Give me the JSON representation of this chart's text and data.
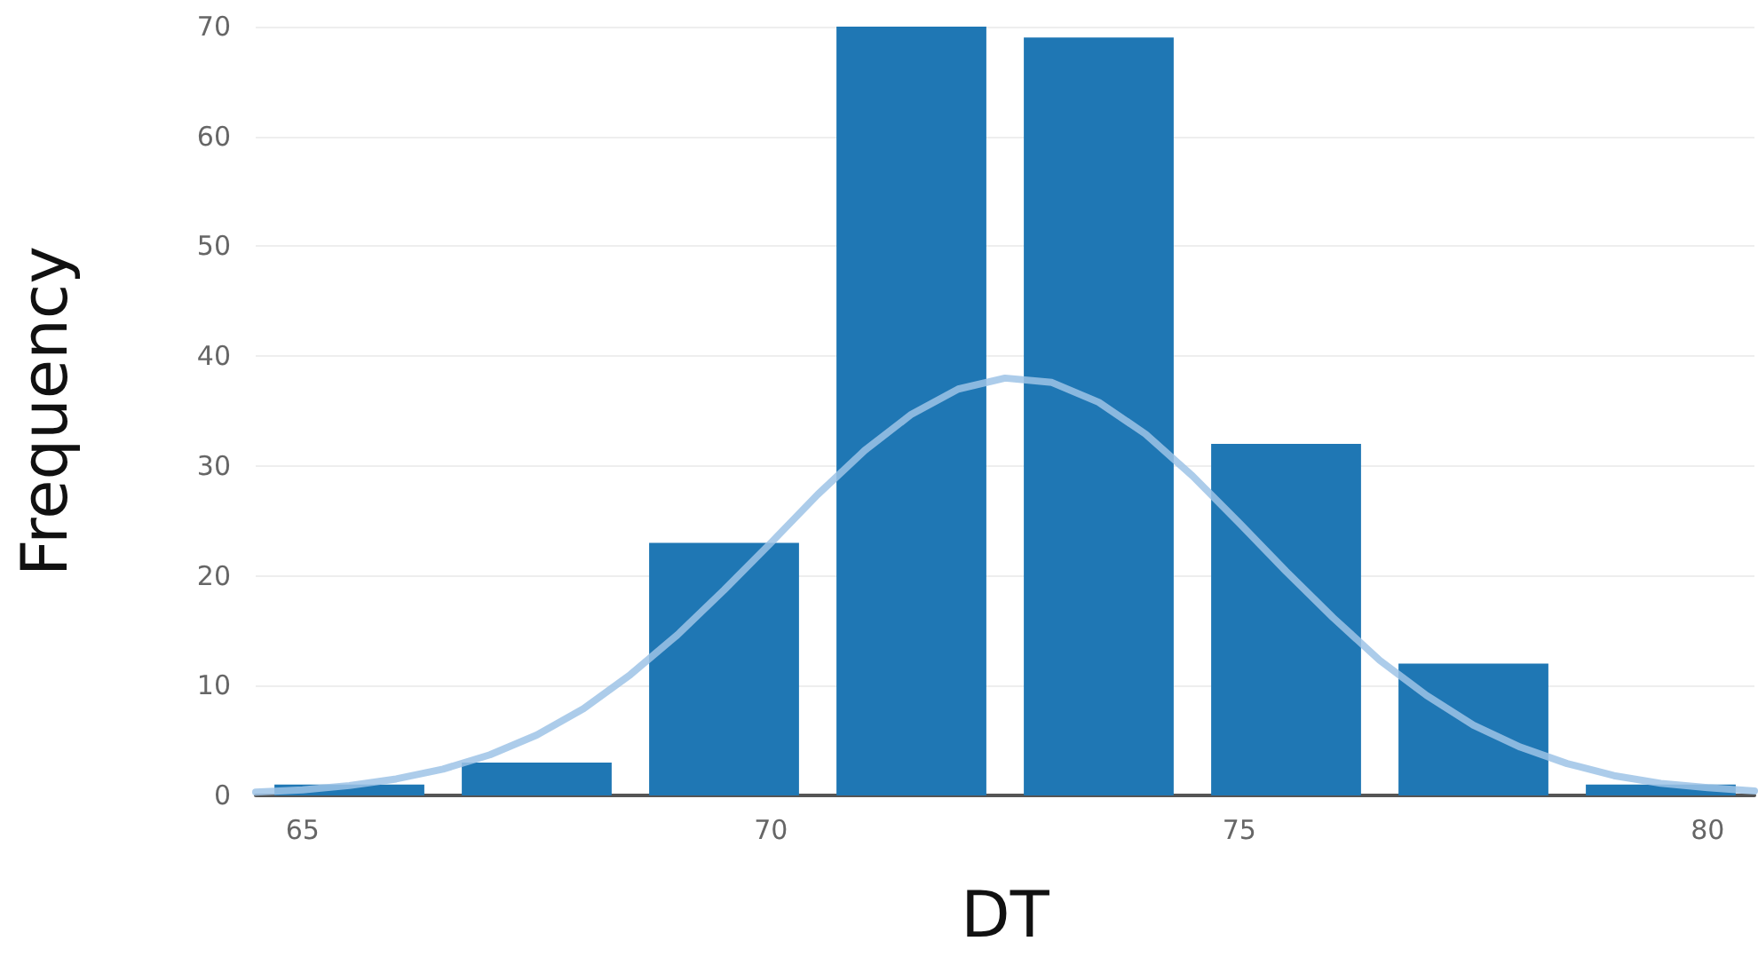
{
  "chart_data": {
    "type": "histogram",
    "xlabel": "DT",
    "ylabel": "Frequency",
    "bins": [
      64.5,
      66.5,
      68.5,
      70.5,
      72.5,
      74.5,
      76.5,
      78.5,
      80.5
    ],
    "values": [
      1,
      3,
      23,
      70,
      69,
      32,
      12,
      1
    ],
    "color": "#1f77b4",
    "series": [
      {
        "type": "line",
        "color": "#9ec3e6",
        "marker": "none",
        "x": [
          64.5,
          65,
          65.5,
          66,
          66.5,
          67,
          67.5,
          68,
          68.5,
          69,
          69.5,
          70,
          70.5,
          71,
          71.5,
          72,
          72.5,
          73,
          73.5,
          74,
          74.5,
          75,
          75.5,
          76,
          76.5,
          77,
          77.5,
          78,
          78.5,
          79,
          79.5,
          80,
          80.5
        ],
        "values": [
          0.3,
          0.5,
          0.9,
          1.5,
          2.4,
          3.7,
          5.5,
          7.9,
          11.0,
          14.6,
          18.7,
          23.0,
          27.4,
          31.4,
          34.7,
          37.0,
          38.0,
          37.6,
          35.8,
          32.9,
          29.1,
          24.8,
          20.4,
          16.2,
          12.3,
          9.1,
          6.4,
          4.4,
          2.9,
          1.8,
          1.1,
          0.7,
          0.4
        ]
      }
    ],
    "xlim": [
      64.5,
      80.5
    ],
    "xticks": [
      65,
      70,
      75,
      80
    ],
    "ylim": [
      0,
      70
    ],
    "yticks": [
      0,
      10,
      20,
      30,
      40,
      50,
      60,
      70
    ],
    "grid": "y"
  }
}
